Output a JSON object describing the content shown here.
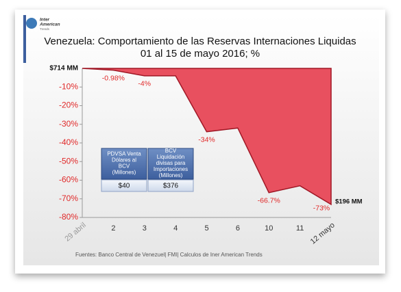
{
  "logo": {
    "line1": "Inter",
    "line2": "American",
    "line3": "Trends"
  },
  "chart_data": {
    "type": "area",
    "title": "Venezuela: Comportamiento de las Reservas Internaciones Liquidas",
    "subtitle": "01 al 15 de mayo 2016; %",
    "categories": [
      "29 abril",
      "2",
      "3",
      "4",
      "5",
      "6",
      "10",
      "11",
      "12 mayo"
    ],
    "values": [
      0,
      -0.98,
      -4,
      -4,
      -34,
      -32,
      -66.7,
      -63,
      -73
    ],
    "value_labels": [
      null,
      "-0.98%",
      "-4%",
      null,
      "-34%",
      null,
      "-66.7%",
      null,
      "-73%"
    ],
    "color": "#e8505f",
    "edge_color": "#a01826",
    "label_color": "#e02828",
    "ylim": [
      -80,
      0
    ],
    "yticks": [
      {
        "value": -10,
        "label": "-10%"
      },
      {
        "value": -20,
        "label": "-20%"
      },
      {
        "value": -30,
        "label": "-30%"
      },
      {
        "value": -40,
        "label": "-40%"
      },
      {
        "value": -50,
        "label": "-50%"
      },
      {
        "value": -60,
        "label": "-60%"
      },
      {
        "value": -70,
        "label": "-70%"
      },
      {
        "value": -80,
        "label": "-80%"
      }
    ],
    "start_label": "$714 MM",
    "end_label": "$196 MM",
    "table": {
      "headers": [
        "PDVSA Venta Dólares al BCV (Millones)",
        "BCV Liquidación divisas para Importaciones (Millones)"
      ],
      "cells": [
        "$40",
        "$376"
      ]
    },
    "source": "Fuentes: Banco Central de Venezuel| FMI| Calculos de Iner American Trends"
  }
}
